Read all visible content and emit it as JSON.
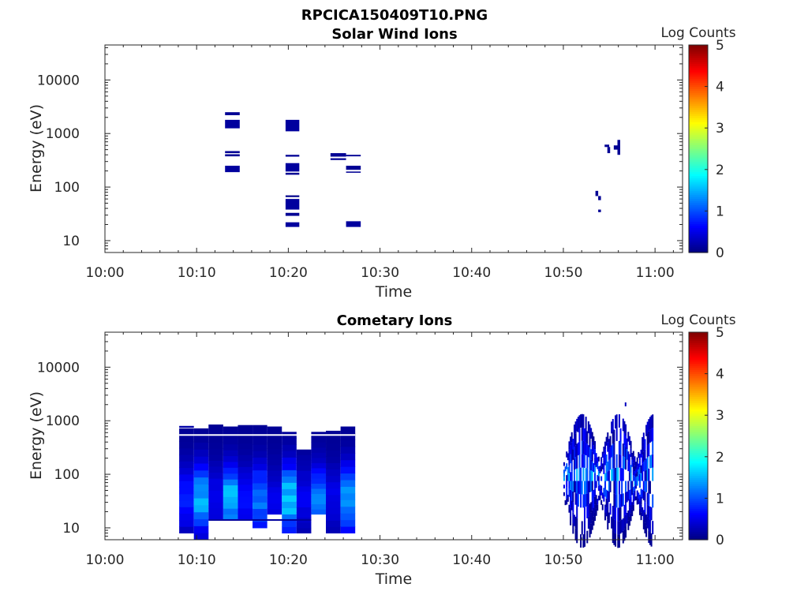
{
  "figure": {
    "title": "RPCICA150409T10.PNG"
  },
  "colorbar": {
    "label": "Log Counts",
    "ticks": [
      "0",
      "1",
      "2",
      "3",
      "4",
      "5"
    ],
    "range": [
      0,
      5
    ],
    "colormap": "jet"
  },
  "chart_data": [
    {
      "type": "heatmap",
      "title": "Solar Wind Ions",
      "xlabel": "Time",
      "ylabel": "Energy (eV)",
      "x_ticks": [
        "10:00",
        "10:10",
        "10:20",
        "10:30",
        "10:40",
        "10:50",
        "11:00"
      ],
      "y_ticks": [
        "10",
        "100",
        "1000",
        "10000"
      ],
      "xlim": [
        "10:00",
        "11:03"
      ],
      "ylim_eV": [
        6,
        45000
      ],
      "y_scale": "log",
      "blocks": [
        {
          "t0": 13.1,
          "t1": 14.7,
          "e0": 2200,
          "e1": 2500,
          "v": 0.1
        },
        {
          "t0": 13.1,
          "t1": 14.7,
          "e0": 1250,
          "e1": 1800,
          "v": 0.15
        },
        {
          "t0": 13.1,
          "t1": 14.7,
          "e0": 430,
          "e1": 470,
          "v": 0.1
        },
        {
          "t0": 13.1,
          "t1": 14.7,
          "e0": 375,
          "e1": 410,
          "v": 0.1
        },
        {
          "t0": 13.1,
          "t1": 14.7,
          "e0": 190,
          "e1": 250,
          "v": 0.15
        },
        {
          "t0": 19.7,
          "t1": 21.2,
          "e0": 1100,
          "e1": 1800,
          "v": 0.15
        },
        {
          "t0": 19.7,
          "t1": 21.2,
          "e0": 370,
          "e1": 400,
          "v": 0.1
        },
        {
          "t0": 19.7,
          "t1": 21.2,
          "e0": 195,
          "e1": 280,
          "v": 0.15
        },
        {
          "t0": 19.7,
          "t1": 21.2,
          "e0": 170,
          "e1": 185,
          "v": 0.1
        },
        {
          "t0": 19.7,
          "t1": 21.2,
          "e0": 65,
          "e1": 70,
          "v": 0.05
        },
        {
          "t0": 19.7,
          "t1": 21.2,
          "e0": 38,
          "e1": 60,
          "v": 0.15
        },
        {
          "t0": 19.7,
          "t1": 21.2,
          "e0": 29,
          "e1": 33,
          "v": 0.1
        },
        {
          "t0": 19.7,
          "t1": 21.2,
          "e0": 18,
          "e1": 22,
          "v": 0.15
        },
        {
          "t0": 24.6,
          "t1": 26.3,
          "e0": 370,
          "e1": 430,
          "v": 0.1
        },
        {
          "t0": 24.6,
          "t1": 26.3,
          "e0": 320,
          "e1": 345,
          "v": 0.1
        },
        {
          "t0": 26.3,
          "t1": 27.9,
          "e0": 375,
          "e1": 400,
          "v": 0.1
        },
        {
          "t0": 26.3,
          "t1": 27.9,
          "e0": 210,
          "e1": 250,
          "v": 0.1
        },
        {
          "t0": 26.3,
          "t1": 27.9,
          "e0": 185,
          "e1": 195,
          "v": 0.1
        },
        {
          "t0": 26.3,
          "t1": 27.9,
          "e0": 18,
          "e1": 23,
          "v": 0.15
        },
        {
          "t0": 53.5,
          "t1": 53.8,
          "e0": 68,
          "e1": 85,
          "v": 0.1
        },
        {
          "t0": 53.8,
          "t1": 54.1,
          "e0": 57,
          "e1": 68,
          "v": 0.1
        },
        {
          "t0": 53.8,
          "t1": 54.1,
          "e0": 34,
          "e1": 38,
          "v": 0.1
        },
        {
          "t0": 54.5,
          "t1": 55.0,
          "e0": 560,
          "e1": 620,
          "v": 0.1
        },
        {
          "t0": 54.8,
          "t1": 55.1,
          "e0": 430,
          "e1": 560,
          "v": 0.1
        },
        {
          "t0": 55.5,
          "t1": 56.2,
          "e0": 500,
          "e1": 600,
          "v": 0.1
        },
        {
          "t0": 55.9,
          "t1": 56.2,
          "e0": 400,
          "e1": 760,
          "v": 0.1
        }
      ]
    },
    {
      "type": "heatmap",
      "title": "Cometary Ions",
      "xlabel": "Time",
      "ylabel": "Energy (eV)",
      "x_ticks": [
        "10:00",
        "10:10",
        "10:20",
        "10:30",
        "10:40",
        "10:50",
        "11:00"
      ],
      "y_ticks": [
        "10",
        "100",
        "1000",
        "10000"
      ],
      "xlim": [
        "10:00",
        "11:03"
      ],
      "ylim_eV": [
        6,
        45000
      ],
      "y_scale": "log",
      "columns": [
        {
          "t0": 8.1,
          "t1": 9.7,
          "top": 720,
          "bottom": 8,
          "peak": 0.65,
          "extra": [
            {
              "e0": 740,
              "e1": 800,
              "v": 0.2
            }
          ]
        },
        {
          "t0": 9.7,
          "t1": 11.3,
          "top": 720,
          "bottom": 6,
          "peak": 1.35
        },
        {
          "t0": 11.3,
          "t1": 12.9,
          "top": 850,
          "bottom": 14,
          "peak": 0.45
        },
        {
          "t0": 12.9,
          "t1": 14.5,
          "top": 780,
          "bottom": 14,
          "peak": 1.45
        },
        {
          "t0": 14.5,
          "t1": 16.1,
          "top": 830,
          "bottom": 14,
          "peak": 0.55
        },
        {
          "t0": 16.1,
          "t1": 17.7,
          "top": 830,
          "bottom": 10,
          "peak": 1.1
        },
        {
          "t0": 17.7,
          "t1": 19.3,
          "top": 780,
          "bottom": 18,
          "peak": 0.4
        },
        {
          "t0": 19.3,
          "t1": 20.9,
          "top": 620,
          "bottom": 8,
          "peak": 1.55
        },
        {
          "t0": 20.9,
          "t1": 22.5,
          "top": 290,
          "bottom": 8,
          "peak": 0.45
        },
        {
          "t0": 22.5,
          "t1": 24.1,
          "top": 620,
          "bottom": 18,
          "peak": 1.05
        },
        {
          "t0": 24.1,
          "t1": 25.7,
          "top": 650,
          "bottom": 8,
          "peak": 0.4
        },
        {
          "t0": 25.7,
          "t1": 27.3,
          "top": 780,
          "bottom": 8,
          "peak": 1.3
        }
      ],
      "scatter_region": {
        "t0": 50.0,
        "t1": 59.8,
        "e_center": 75,
        "peak": 1.6
      }
    }
  ]
}
